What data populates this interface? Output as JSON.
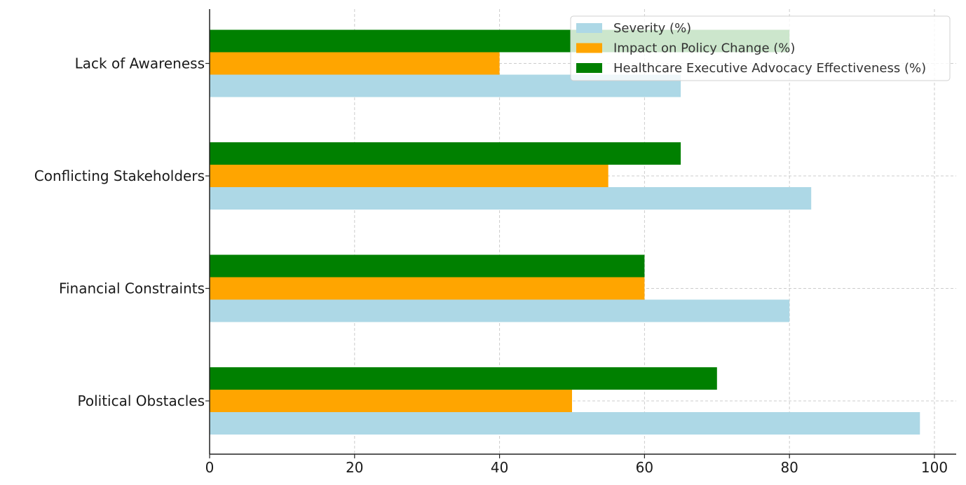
{
  "chart_data": {
    "type": "bar",
    "orientation": "horizontal",
    "categories": [
      "Political Obstacles",
      "Financial Constraints",
      "Conflicting Stakeholders",
      "Lack of Awareness"
    ],
    "series": [
      {
        "name": "Severity (%)",
        "color": "#add8e6",
        "values": [
          98,
          80,
          83,
          65
        ]
      },
      {
        "name": "Impact on Policy Change (%)",
        "color": "#ffa500",
        "values": [
          50,
          60,
          55,
          40
        ]
      },
      {
        "name": "Healthcare Executive Advocacy Effectiveness (%)",
        "color": "#008000",
        "values": [
          70,
          60,
          65,
          80
        ]
      }
    ],
    "xlim": [
      0,
      103
    ],
    "x_ticks": [
      0,
      20,
      40,
      60,
      80,
      100
    ],
    "title": "",
    "xlabel": "",
    "ylabel": "",
    "grid": true,
    "legend_position": "top-right"
  }
}
